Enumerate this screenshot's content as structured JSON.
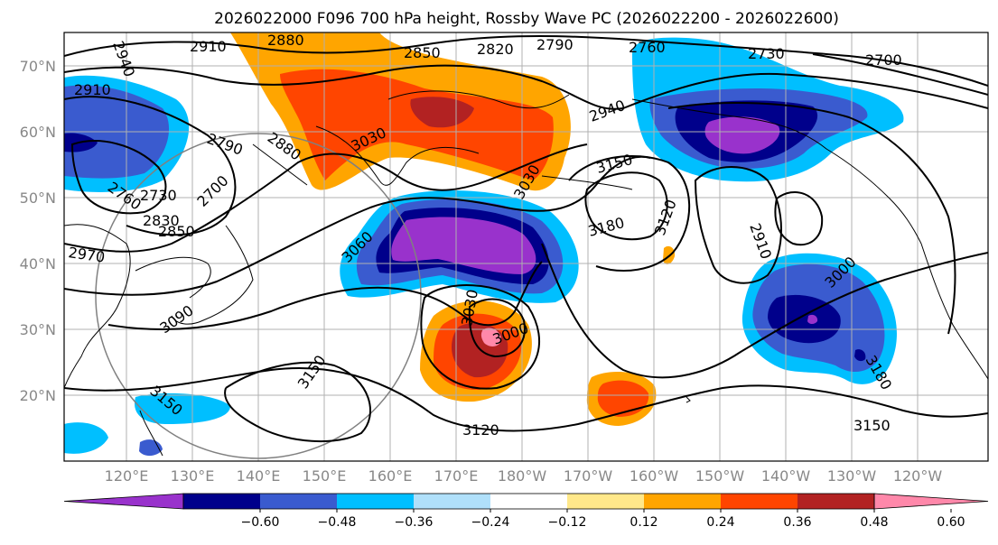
{
  "title": "2026022000 F096 700 hPa height, Rossby Wave PC (2026022200 - 2026022600)",
  "map": {
    "lon_labels": [
      "120°E",
      "130°E",
      "140°E",
      "150°E",
      "160°E",
      "170°E",
      "180°W",
      "170°W",
      "160°W",
      "150°W",
      "140°W",
      "130°W",
      "120°W"
    ],
    "lat_labels": [
      "70°N",
      "60°N",
      "50°N",
      "40°N",
      "30°N",
      "20°N"
    ],
    "contour_labels": [
      "2910",
      "2880",
      "2850",
      "2820",
      "2790",
      "2760",
      "2730",
      "2700",
      "2940",
      "2910",
      "2790",
      "2880",
      "2700",
      "2730",
      "2760",
      "2830",
      "2850",
      "2970",
      "3030",
      "3030",
      "2940",
      "3150",
      "3180",
      "3120",
      "2910",
      "3000",
      "3060",
      "3030",
      "3000",
      "3090",
      "3150",
      "3150",
      "3120",
      "3180",
      "3150"
    ]
  },
  "colorbar": {
    "ticks": [
      "−0.60",
      "−0.48",
      "−0.36",
      "−0.24",
      "−0.12",
      "0.12",
      "0.24",
      "0.36",
      "0.48",
      "0.60"
    ],
    "colors": [
      "#9932cc",
      "#00008b",
      "#3a5bcf",
      "#00bfff",
      "#b0e0fa",
      "#ffffff",
      "#ffe88a",
      "#ffa500",
      "#ff4500",
      "#b22222",
      "#ff88aa"
    ]
  }
}
